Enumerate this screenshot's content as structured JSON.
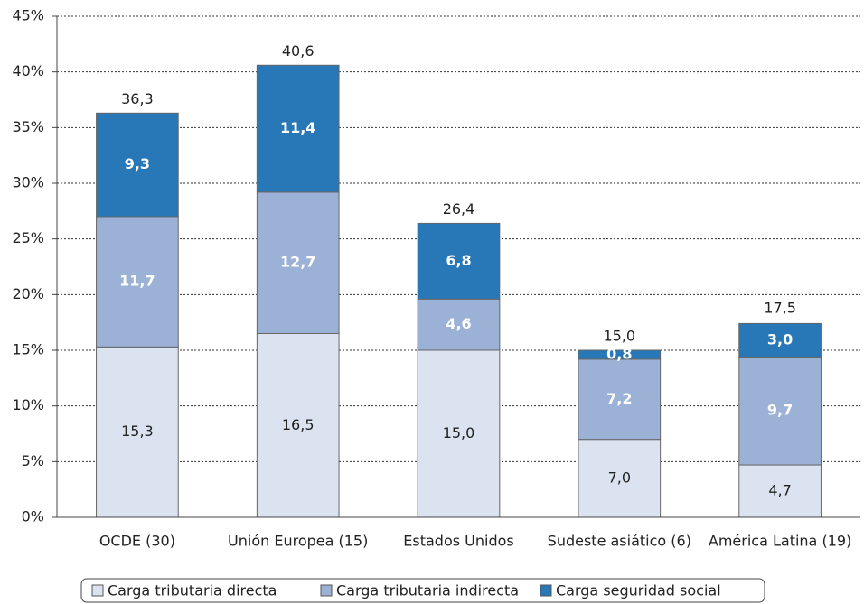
{
  "chart_data": {
    "type": "stacked_bar",
    "categories": [
      "OCDE (30)",
      "Unión Europea (15)",
      "Estados Unidos",
      "Sudeste asiático (6)",
      "América Latina (19)"
    ],
    "series": [
      {
        "name": "Carga tributaria directa",
        "color": "#dbe3f1",
        "label_color": "#222222",
        "values": [
          15.3,
          16.5,
          15.0,
          7.0,
          4.7
        ],
        "value_labels": [
          "15,3",
          "16,5",
          "15,0",
          "7,0",
          "4,7"
        ]
      },
      {
        "name": "Carga tributaria indirecta",
        "color": "#9bb1d6",
        "label_color": "#ffffff",
        "values": [
          11.7,
          12.7,
          4.6,
          7.2,
          9.7
        ],
        "value_labels": [
          "11,7",
          "12,7",
          "4,6",
          "7,2",
          "9,7"
        ]
      },
      {
        "name": "Carga seguridad social",
        "color": "#2878b8",
        "label_color": "#ffffff",
        "values": [
          9.3,
          11.4,
          6.8,
          0.8,
          3.0
        ],
        "value_labels": [
          "9,3",
          "11,4",
          "6,8",
          "0,8",
          "3,0"
        ]
      }
    ],
    "totals": {
      "values": [
        36.3,
        40.6,
        26.4,
        15.0,
        17.5
      ],
      "value_labels": [
        "36,3",
        "40,6",
        "26,4",
        "15,0",
        "17,5"
      ]
    },
    "ylim": [
      0,
      45
    ],
    "yticks": [
      {
        "value": 0,
        "label": "0%"
      },
      {
        "value": 5,
        "label": "5%"
      },
      {
        "value": 10,
        "label": "10%"
      },
      {
        "value": 15,
        "label": "15%"
      },
      {
        "value": 20,
        "label": "20%"
      },
      {
        "value": 25,
        "label": "25%"
      },
      {
        "value": 30,
        "label": "30%"
      },
      {
        "value": 35,
        "label": "35%"
      },
      {
        "value": 40,
        "label": "40%"
      },
      {
        "value": 45,
        "label": "45%"
      }
    ],
    "grid": true
  }
}
